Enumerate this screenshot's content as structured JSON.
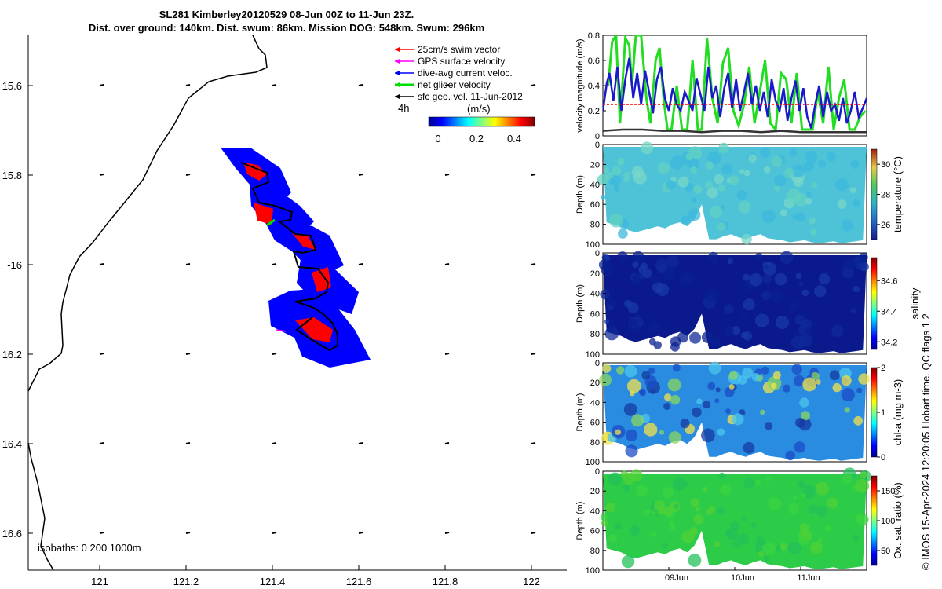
{
  "header": {
    "title_line1": "SL281 Kimberley20120529 08-Jun 00Z to 11-Jun 23Z.",
    "title_line2": "Dist. over ground: 140km. Dist. swum: 86km. Mission DOG: 548km. Swum: 296km"
  },
  "copyright": "© IMOS 15-Apr-2024 12:20:05 Hobart time. QC flags 1  2",
  "map": {
    "lon_ticks": [
      "121",
      "121.2",
      "121.4",
      "121.6",
      "121.8",
      "122"
    ],
    "lat_ticks": [
      "15.6",
      "15.8",
      "-16",
      "16.2",
      "16.4",
      "16.6"
    ],
    "isobaths_label": "isobaths: 0   200  1000m",
    "colors": {
      "track": "#0000ff",
      "patch": "#ff0000",
      "coast": "#000000"
    },
    "legend": {
      "items": [
        {
          "label": "25cm/s swim vector",
          "color": "#ff0000"
        },
        {
          "label": "GPS surface velocity",
          "color": "#ff00ff"
        },
        {
          "label": "dive-avg current veloc.",
          "color": "#0000ff"
        },
        {
          "label": "net glider velocity",
          "color": "#00dd00"
        },
        {
          "label": "sfc geo. vel. 11-Jun-2012",
          "color": "#000000"
        }
      ],
      "time_label": "4h",
      "unit": "(m/s)",
      "colorbar_ticks": [
        "0",
        "0.2",
        "0.4"
      ]
    }
  },
  "chart_data": [
    {
      "type": "line",
      "ylabel": "velocity magnitude (m/s)",
      "ylim": [
        0,
        0.8
      ],
      "yticks": [
        "0",
        "0.2",
        "0.4",
        "0.6",
        "0.8"
      ],
      "x_range_days": [
        8.0,
        12.0
      ],
      "series": [
        {
          "name": "net glider velocity",
          "color": "#22dd22",
          "x": [
            8.08,
            8.14,
            8.2,
            8.26,
            8.34,
            8.4,
            8.44,
            8.5,
            8.58,
            8.66,
            8.72,
            8.8,
            8.86,
            8.92,
            8.98,
            9.04,
            9.12,
            9.2,
            9.28,
            9.36,
            9.44,
            9.5,
            9.58,
            9.66,
            9.74,
            9.82,
            9.9,
            9.98,
            10.06,
            10.14,
            10.22,
            10.3,
            10.38,
            10.46,
            10.54,
            10.62,
            10.7,
            10.78,
            10.86,
            10.94,
            11.02,
            11.1,
            11.18,
            11.26,
            11.34,
            11.42,
            11.5,
            11.58,
            11.66,
            11.74,
            11.82,
            11.9,
            11.98
          ],
          "values": [
            0.4,
            0.75,
            0.8,
            0.1,
            0.78,
            0.72,
            0.4,
            0.8,
            0.8,
            0.3,
            0.1,
            0.6,
            0.7,
            0.3,
            0.05,
            0.05,
            0.4,
            0.05,
            0.05,
            0.6,
            0.05,
            0.05,
            0.78,
            0.3,
            0.1,
            0.58,
            0.7,
            0.2,
            0.08,
            0.25,
            0.55,
            0.1,
            0.35,
            0.6,
            0.1,
            0.05,
            0.5,
            0.45,
            0.1,
            0.5,
            0.05,
            0.05,
            0.05,
            0.35,
            0.1,
            0.55,
            0.05,
            0.3,
            0.45,
            0.05,
            0.05,
            0.15,
            0.2
          ]
        },
        {
          "name": "dive-avg current veloc.",
          "color": "#1a1acc",
          "x": [
            8.0,
            8.06,
            8.1,
            8.16,
            8.22,
            8.28,
            8.34,
            8.4,
            8.46,
            8.52,
            8.58,
            8.64,
            8.7,
            8.76,
            8.82,
            8.88,
            8.94,
            9.0,
            9.06,
            9.12,
            9.18,
            9.24,
            9.3,
            9.36,
            9.42,
            9.48,
            9.54,
            9.6,
            9.66,
            9.72,
            9.78,
            9.84,
            9.9,
            9.96,
            10.02,
            10.08,
            10.14,
            10.2,
            10.26,
            10.32,
            10.38,
            10.44,
            10.5,
            10.56,
            10.62,
            10.68,
            10.74,
            10.8,
            10.86,
            10.92,
            10.98,
            11.04,
            11.1,
            11.16,
            11.22,
            11.28,
            11.34,
            11.4,
            11.46,
            11.52,
            11.58,
            11.64,
            11.7,
            11.76,
            11.82,
            11.88,
            11.94,
            12.0
          ],
          "values": [
            0.2,
            0.42,
            0.5,
            0.28,
            0.55,
            0.2,
            0.45,
            0.62,
            0.3,
            0.5,
            0.25,
            0.52,
            0.35,
            0.18,
            0.45,
            0.55,
            0.3,
            0.2,
            0.38,
            0.25,
            0.2,
            0.35,
            0.28,
            0.2,
            0.46,
            0.33,
            0.2,
            0.55,
            0.3,
            0.4,
            0.15,
            0.38,
            0.5,
            0.22,
            0.45,
            0.2,
            0.35,
            0.5,
            0.25,
            0.4,
            0.2,
            0.35,
            0.15,
            0.45,
            0.28,
            0.2,
            0.38,
            0.12,
            0.3,
            0.44,
            0.2,
            0.38,
            0.15,
            0.06,
            0.25,
            0.4,
            0.15,
            0.35,
            0.2,
            0.25,
            0.12,
            0.3,
            0.1,
            0.2,
            0.35,
            0.15,
            0.22,
            0.3
          ]
        },
        {
          "name": "25cm/s swim vector",
          "color": "#ff0000",
          "x": [
            8.0,
            12.0
          ],
          "values": [
            0.25,
            0.25
          ]
        },
        {
          "name": "sfc geo. vel. 11-Jun-2012",
          "color": "#333333",
          "x": [
            8.0,
            8.3,
            8.6,
            8.9,
            9.2,
            9.5,
            9.8,
            10.1,
            10.4,
            10.7,
            11.0,
            11.3,
            11.6,
            12.0
          ],
          "values": [
            0.04,
            0.05,
            0.05,
            0.04,
            0.04,
            0.03,
            0.04,
            0.04,
            0.03,
            0.04,
            0.03,
            0.03,
            0.03,
            0.03
          ]
        }
      ]
    },
    {
      "type": "heatmap",
      "variable": "temperature",
      "ylabel": "Depth (m)",
      "yticks": [
        "0",
        "20",
        "40",
        "60",
        "80",
        "100"
      ],
      "colorbar_label": "temperature (°C)",
      "colorbar_ticks": [
        "26",
        "28",
        "30"
      ],
      "clim": [
        25,
        31
      ]
    },
    {
      "type": "heatmap",
      "variable": "salinity",
      "ylabel": "Depth (m)",
      "yticks": [
        "0",
        "20",
        "40",
        "60",
        "80",
        "100"
      ],
      "colorbar_label": "salinity",
      "colorbar_ticks": [
        "34.2",
        "34.4",
        "34.6"
      ],
      "clim": [
        34.15,
        34.75
      ]
    },
    {
      "type": "heatmap",
      "variable": "chl-a",
      "ylabel": "Depth (m)",
      "yticks": [
        "0",
        "20",
        "40",
        "60",
        "80",
        "100"
      ],
      "colorbar_label": "chl-a (mg m-3)",
      "colorbar_ticks": [
        "0",
        "1",
        "2"
      ],
      "clim": [
        0,
        2
      ]
    },
    {
      "type": "heatmap",
      "variable": "oxygen",
      "ylabel": "Depth (m)",
      "yticks": [
        "0",
        "20",
        "40",
        "60",
        "80",
        "100"
      ],
      "colorbar_label": "Ox. sat. ratio (%)",
      "colorbar_ticks": [
        "50",
        "100",
        "150"
      ],
      "clim": [
        25,
        175
      ],
      "xticks": [
        "09Jun",
        "10Jun",
        "11Jun"
      ]
    }
  ]
}
